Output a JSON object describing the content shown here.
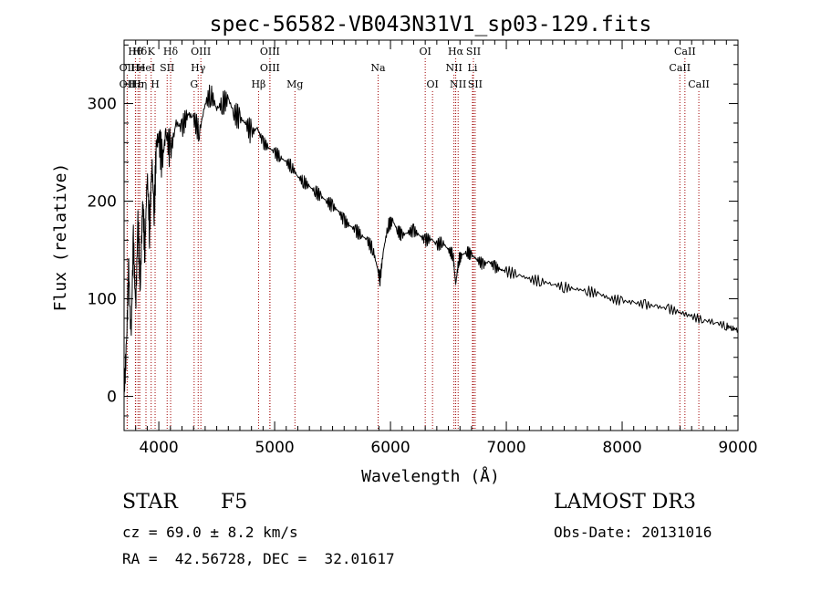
{
  "chart_data": {
    "type": "line",
    "title": "spec-56582-VB043N31V1_sp03-129.fits",
    "xlabel": "Wavelength (Å)",
    "ylabel": "Flux (relative)",
    "xlim": [
      3700,
      9000
    ],
    "ylim": [
      -35,
      365
    ],
    "x_ticks": [
      4000,
      5000,
      6000,
      7000,
      8000,
      9000
    ],
    "x_tick_labels": [
      "4000",
      "5000",
      "6000",
      "7000",
      "8000",
      "9000"
    ],
    "y_ticks": [
      0,
      100,
      200,
      300
    ],
    "y_tick_labels": [
      "0",
      "100",
      "200",
      "300"
    ],
    "line_color": "#000000",
    "marker_color": "#a00000",
    "series": [
      {
        "name": "flux",
        "x": [
          3700,
          3720,
          3740,
          3760,
          3780,
          3800,
          3820,
          3840,
          3860,
          3880,
          3900,
          3920,
          3940,
          3960,
          3980,
          4000,
          4030,
          4060,
          4100,
          4150,
          4200,
          4250,
          4300,
          4350,
          4400,
          4450,
          4500,
          4550,
          4600,
          4650,
          4700,
          4750,
          4800,
          4850,
          4900,
          4950,
          5000,
          5050,
          5100,
          5150,
          5200,
          5250,
          5300,
          5350,
          5400,
          5450,
          5500,
          5550,
          5600,
          5650,
          5700,
          5750,
          5800,
          5850,
          5890,
          5910,
          5940,
          5980,
          6020,
          6060,
          6100,
          6150,
          6200,
          6250,
          6300,
          6350,
          6400,
          6450,
          6500,
          6540,
          6563,
          6590,
          6620,
          6660,
          6700,
          6750,
          6800,
          6850,
          6900,
          6950,
          7000,
          7100,
          7200,
          7300,
          7400,
          7500,
          7600,
          7700,
          7800,
          7900,
          8000,
          8100,
          8200,
          8300,
          8400,
          8500,
          8600,
          8700,
          8800,
          8900,
          8950,
          9000
        ],
        "y": [
          0,
          50,
          130,
          60,
          160,
          90,
          180,
          110,
          200,
          150,
          230,
          170,
          240,
          190,
          260,
          265,
          240,
          270,
          250,
          280,
          275,
          290,
          285,
          270,
          300,
          310,
          295,
          300,
          305,
          290,
          285,
          280,
          270,
          275,
          260,
          255,
          250,
          245,
          240,
          235,
          225,
          220,
          215,
          210,
          205,
          200,
          195,
          190,
          180,
          175,
          170,
          165,
          160,
          150,
          130,
          120,
          150,
          175,
          180,
          170,
          165,
          168,
          170,
          165,
          160,
          162,
          155,
          158,
          150,
          145,
          115,
          140,
          145,
          148,
          145,
          140,
          135,
          138,
          133,
          130,
          128,
          125,
          120,
          118,
          115,
          112,
          110,
          108,
          105,
          100,
          98,
          96,
          94,
          92,
          90,
          86,
          82,
          78,
          76,
          72,
          70,
          68
        ]
      }
    ],
    "line_markers": [
      {
        "label": "Hθ",
        "x": 3798,
        "row": 0,
        "anchor": "middle"
      },
      {
        "label": "Hδ",
        "x": 3835,
        "row": 0,
        "anchor": "middle"
      },
      {
        "label": "K",
        "x": 3934,
        "row": 0,
        "anchor": "middle"
      },
      {
        "label": "Hδ",
        "x": 4102,
        "row": 0,
        "anchor": "middle"
      },
      {
        "label": "OIII",
        "x": 4363,
        "row": 0,
        "anchor": "middle"
      },
      {
        "label": "OIII",
        "x": 4959,
        "row": 0,
        "anchor": "middle"
      },
      {
        "label": "OI",
        "x": 6300,
        "row": 0,
        "anchor": "middle"
      },
      {
        "label": "Hα",
        "x": 6563,
        "row": 0,
        "anchor": "middle"
      },
      {
        "label": "SII",
        "x": 6716,
        "row": 0,
        "anchor": "middle"
      },
      {
        "label": "CaII",
        "x": 8542,
        "row": 0,
        "anchor": "middle"
      },
      {
        "label": "OII",
        "x": 3727,
        "row": 1,
        "anchor": "middle"
      },
      {
        "label": "He",
        "x": 3820,
        "row": 1,
        "anchor": "middle"
      },
      {
        "label": "HeI",
        "x": 3889,
        "row": 1,
        "anchor": "middle"
      },
      {
        "label": "SII",
        "x": 4072,
        "row": 1,
        "anchor": "middle"
      },
      {
        "label": "Hγ",
        "x": 4340,
        "row": 1,
        "anchor": "middle"
      },
      {
        "label": "OIII",
        "x": 4959,
        "row": 1,
        "anchor": "middle"
      },
      {
        "label": "Na",
        "x": 5893,
        "row": 1,
        "anchor": "middle"
      },
      {
        "label": "NII",
        "x": 6548,
        "row": 1,
        "anchor": "middle"
      },
      {
        "label": "Li",
        "x": 6708,
        "row": 1,
        "anchor": "middle"
      },
      {
        "label": "CaII",
        "x": 8498,
        "row": 1,
        "anchor": "middle"
      },
      {
        "label": "OII",
        "x": 3727,
        "row": 2,
        "anchor": "middle"
      },
      {
        "label": "Hε",
        "x": 3800,
        "row": 2,
        "anchor": "middle"
      },
      {
        "label": "Hη",
        "x": 3835,
        "row": 2,
        "anchor": "middle"
      },
      {
        "label": "H",
        "x": 3968,
        "row": 2,
        "anchor": "middle"
      },
      {
        "label": "G",
        "x": 4305,
        "row": 2,
        "anchor": "middle"
      },
      {
        "label": "Hβ",
        "x": 4861,
        "row": 2,
        "anchor": "middle"
      },
      {
        "label": "Mg",
        "x": 5175,
        "row": 2,
        "anchor": "middle"
      },
      {
        "label": "OI",
        "x": 6363,
        "row": 2,
        "anchor": "middle"
      },
      {
        "label": "NII",
        "x": 6584,
        "row": 2,
        "anchor": "middle"
      },
      {
        "label": "SII",
        "x": 6731,
        "row": 2,
        "anchor": "middle"
      },
      {
        "label": "CaII",
        "x": 8662,
        "row": 2,
        "anchor": "middle"
      }
    ]
  },
  "info": {
    "class": "STAR",
    "subclass": "F5",
    "survey": "LAMOST DR3",
    "velocity": "cz = 69.0 ± 8.2 km/s",
    "obs_date": "Obs-Date: 20131016",
    "coords": "RA =  42.56728, DEC =  32.01617"
  }
}
